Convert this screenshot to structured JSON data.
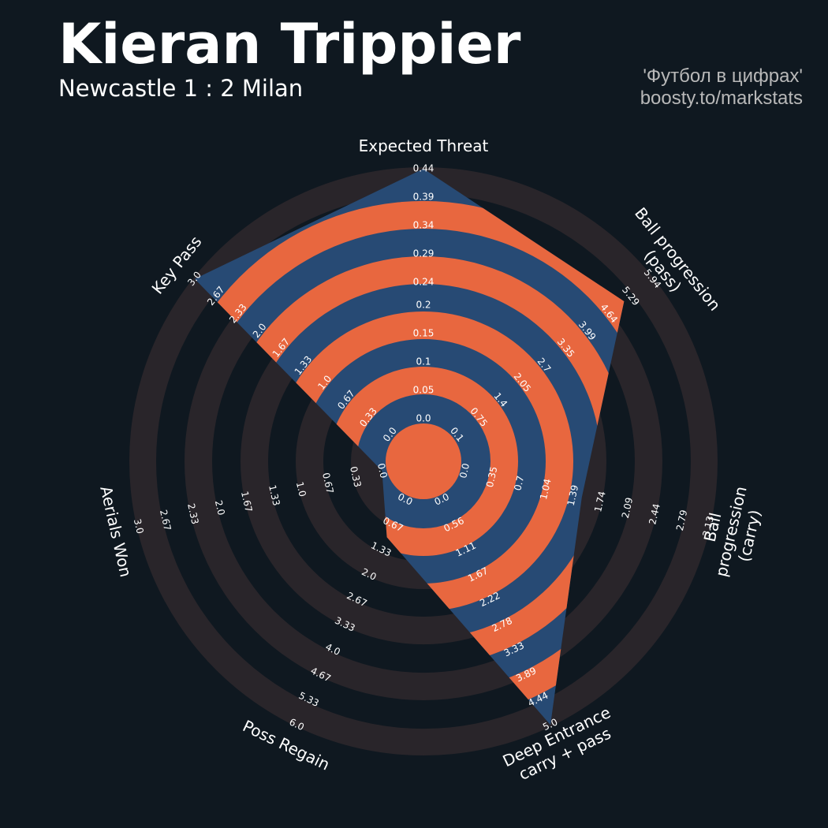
{
  "chart_data": {
    "type": "radar",
    "title": "Kieran Trippier",
    "subtitle": "Newcastle 1 : 2 Milan",
    "credits": [
      "'Футбол в цифрах'",
      "boosty.to/markstats"
    ],
    "polygon_color": "#274a74",
    "ring_color": "#e8673f",
    "outer_ring_color": "#29252a",
    "axes": [
      {
        "name": "Expected Threat",
        "value": 0.44,
        "lim": [
          0,
          0.44
        ],
        "ticks": [
          {
            "value": 0,
            "label": "0.0"
          },
          0.05,
          0.1,
          0.15,
          0.2,
          0.24,
          0.29,
          0.34,
          0.39,
          0.44
        ]
      },
      {
        "name": "Ball progression (pass)",
        "value": 5.1,
        "lim": [
          0.1,
          5.94
        ],
        "ticks": [
          0.1,
          0.75,
          1.4,
          2.05,
          2.7,
          3.35,
          3.99,
          4.64,
          5.29,
          5.94
        ]
      },
      {
        "name": "Ball progression (carry)",
        "value": 1.5,
        "lim": [
          0,
          3.13
        ],
        "ticks": [
          {
            "value": 0,
            "label": "0.0"
          },
          0.35,
          0.7,
          1.04,
          1.39,
          1.74,
          2.09,
          2.44,
          2.79,
          3.13
        ]
      },
      {
        "name": "Deep Entrance\ncarry + pass",
        "value": 5,
        "lim": [
          0,
          5
        ],
        "ticks": [
          {
            "value": 0,
            "label": "0.0"
          },
          0.56,
          1.11,
          1.67,
          2.22,
          2.78,
          3.33,
          3.89,
          4.44,
          {
            "value": 5,
            "label": "5.0"
          }
        ]
      },
      {
        "name": "Poss Regain",
        "value": 1,
        "lim": [
          0,
          6
        ],
        "ticks": [
          {
            "value": 0,
            "label": "0.0"
          },
          0.67,
          1.33,
          {
            "value": 2,
            "label": "2.0"
          },
          2.67,
          3.33,
          {
            "value": 4,
            "label": "4.0"
          },
          4.67,
          5.33,
          {
            "value": 6,
            "label": "6.0"
          }
        ]
      },
      {
        "name": "Aerials Won",
        "value": 0,
        "lim": [
          0,
          3
        ],
        "ticks": [
          {
            "value": 0,
            "label": "0.0"
          },
          0.33,
          0.67,
          {
            "value": 1,
            "label": "1.0"
          },
          1.33,
          1.67,
          {
            "value": 2,
            "label": "2.0"
          },
          2.33,
          2.67,
          {
            "value": 3,
            "label": "3.0"
          }
        ]
      },
      {
        "name": "Key Pass",
        "value": 3,
        "lim": [
          0,
          3
        ],
        "ticks": [
          {
            "value": 0,
            "label": "0.0"
          },
          0.33,
          0.67,
          {
            "value": 1,
            "label": "1.0"
          },
          1.33,
          1.67,
          {
            "value": 2,
            "label": "2.0"
          },
          2.33,
          2.67,
          {
            "value": 3,
            "label": "3.0"
          }
        ]
      }
    ]
  }
}
